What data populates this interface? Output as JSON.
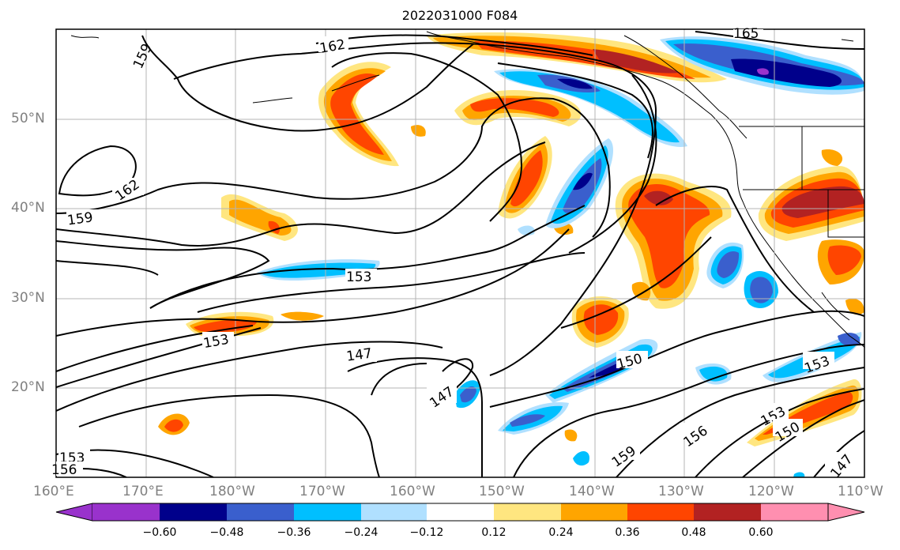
{
  "title": "2022031000 F084",
  "x_tick_labels": [
    "160°E",
    "170°E",
    "180°W",
    "170°W",
    "160°W",
    "150°W",
    "140°W",
    "130°W",
    "120°W",
    "110°W"
  ],
  "y_tick_labels": [
    "50°N",
    "40°N",
    "30°N",
    "20°N"
  ],
  "contour_labels": [
    "162",
    "159",
    "165",
    "162",
    "159",
    "153",
    "153",
    "147",
    "147",
    "150",
    "159",
    "156",
    "153",
    "150",
    "153",
    "147",
    "153",
    "156"
  ],
  "colorbar": {
    "colors": [
      "#9932cc",
      "#00008b",
      "#3a5fcd",
      "#00bfff",
      "#b0e0ff",
      "#ffffff",
      "#ffe680",
      "#ffa500",
      "#ff4500",
      "#b22222",
      "#ff8fb0"
    ],
    "tick_labels": [
      "−0.60",
      "−0.48",
      "−0.36",
      "−0.24",
      "−0.12",
      "0.12",
      "0.24",
      "0.36",
      "0.48",
      "0.60"
    ]
  }
}
